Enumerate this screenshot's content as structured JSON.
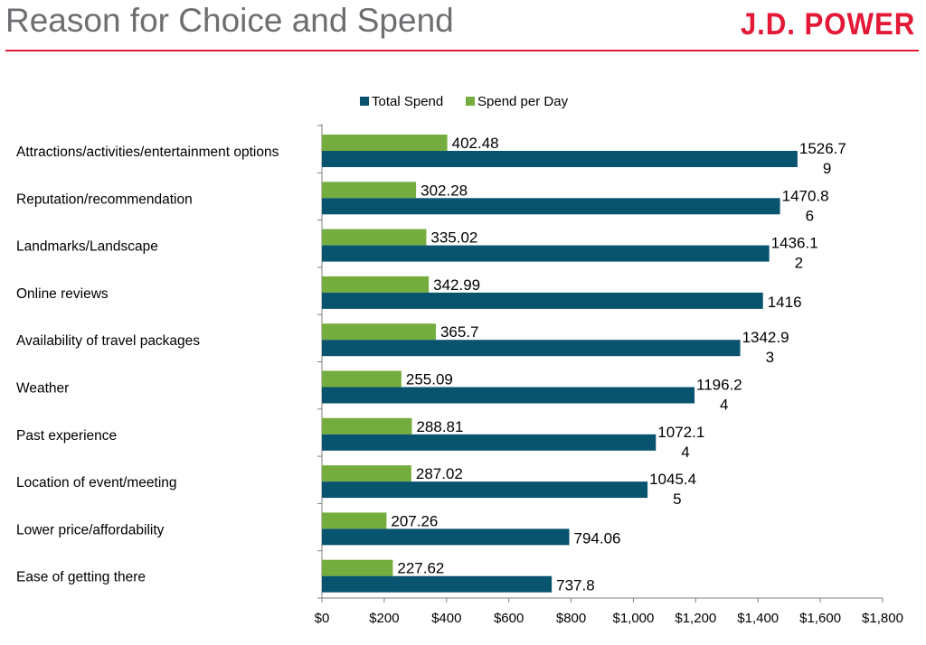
{
  "header": {
    "title": "Reason for Choice and Spend",
    "logo_text": "J.D. POWER"
  },
  "colors": {
    "accent": "#e31937",
    "total_spend": "#08536e",
    "spend_per_day": "#74ad3e"
  },
  "chart_data": {
    "type": "bar",
    "orientation": "horizontal",
    "title": "Reason for Choice and Spend",
    "categories": [
      "Attractions/activities/entertainment options",
      "Reputation/recommendation",
      "Landmarks/Landscape",
      "Online reviews",
      "Availability of travel packages",
      "Weather",
      "Past experience",
      "Location of event/meeting",
      "Lower price/affordability",
      "Ease of getting there"
    ],
    "series": [
      {
        "name": "Total Spend",
        "color": "#08536e",
        "values": [
          1526.79,
          1470.86,
          1436.12,
          1416,
          1342.93,
          1196.24,
          1072.14,
          1045.45,
          794.06,
          737.8
        ],
        "labels": [
          [
            "1526.7",
            "9"
          ],
          [
            "1470.8",
            "6"
          ],
          [
            "1436.1",
            "2"
          ],
          [
            "1416"
          ],
          [
            "1342.9",
            "3"
          ],
          [
            "1196.2",
            "4"
          ],
          [
            "1072.1",
            "4"
          ],
          [
            "1045.4",
            "5"
          ],
          [
            "794.06"
          ],
          [
            "737.8"
          ]
        ]
      },
      {
        "name": "Spend per Day",
        "color": "#74ad3e",
        "values": [
          402.48,
          302.28,
          335.02,
          342.99,
          365.7,
          255.09,
          288.81,
          287.02,
          207.26,
          227.62
        ],
        "labels": [
          [
            "402.48"
          ],
          [
            "302.28"
          ],
          [
            "335.02"
          ],
          [
            "342.99"
          ],
          [
            "365.7"
          ],
          [
            "255.09"
          ],
          [
            "288.81"
          ],
          [
            "287.02"
          ],
          [
            "207.26"
          ],
          [
            "227.62"
          ]
        ]
      }
    ],
    "x_ticks": [
      "$0",
      "$200",
      "$400",
      "$600",
      "$800",
      "$1,000",
      "$1,200",
      "$1,400",
      "$1,600",
      "$1,800"
    ],
    "xlim": [
      0,
      1800
    ],
    "xlabel": "",
    "ylabel": "",
    "grid": false,
    "legend": {
      "position": "top",
      "entries": [
        "Total Spend",
        "Spend per Day"
      ]
    }
  }
}
